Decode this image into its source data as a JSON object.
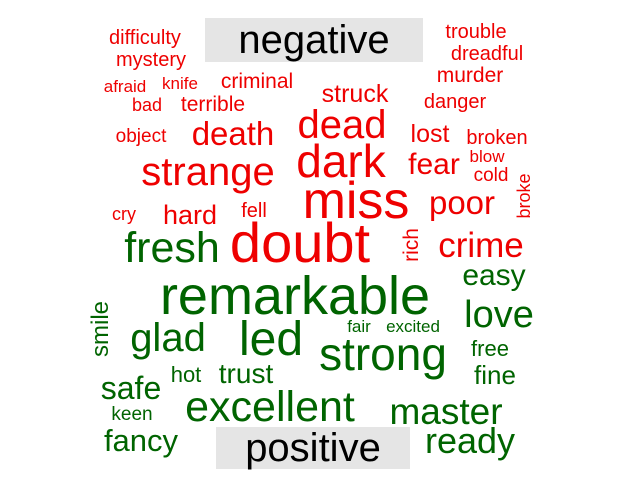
{
  "colors": {
    "negative": "#ee0000",
    "positive": "#006400",
    "label_bg": "#e5e5e5"
  },
  "chart_data": {
    "type": "comparison wordcloud",
    "groups": [
      {
        "name": "negative",
        "color": "#ee0000",
        "words": [
          "difficulty",
          "trouble",
          "mystery",
          "dreadful",
          "afraid",
          "knife",
          "criminal",
          "murder",
          "bad",
          "terrible",
          "struck",
          "danger",
          "dead",
          "object",
          "death",
          "lost",
          "broken",
          "blow",
          "strange",
          "dark",
          "fear",
          "cold",
          "miss",
          "broke",
          "cry",
          "hard",
          "fell",
          "poor",
          "doubt",
          "crime",
          "rich"
        ]
      },
      {
        "name": "positive",
        "color": "#006400",
        "words": [
          "fresh",
          "easy",
          "remarkable",
          "smile",
          "love",
          "glad",
          "led",
          "fair",
          "excited",
          "strong",
          "free",
          "hot",
          "trust",
          "safe",
          "fine",
          "excellent",
          "master",
          "keen",
          "fancy",
          "ready"
        ]
      }
    ]
  }
}
